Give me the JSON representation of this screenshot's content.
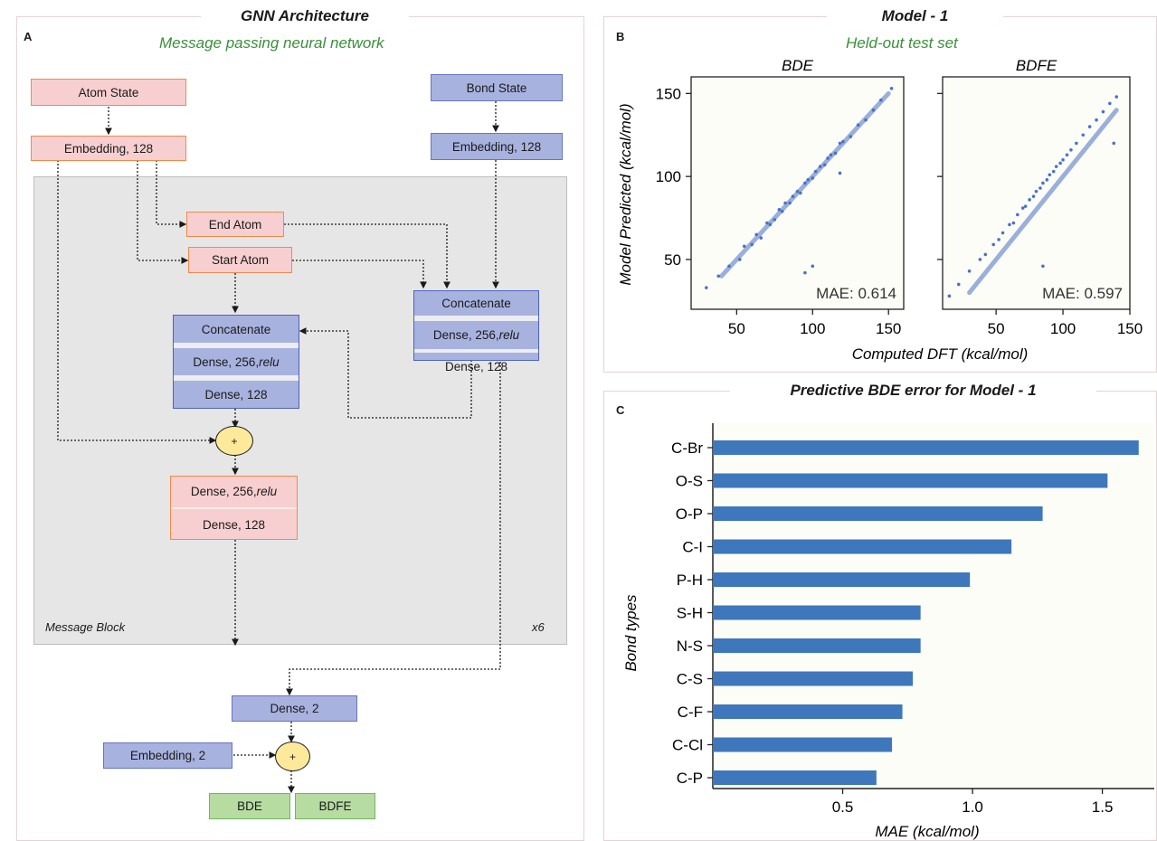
{
  "panel_a": {
    "letter": "A",
    "title": "GNN Architecture",
    "subtitle": "Message passing neural network",
    "atom_state": "Atom State",
    "atom_embedding": "Embedding, 128",
    "bond_state": "Bond State",
    "bond_embedding": "Embedding, 128",
    "end_atom": "End Atom",
    "start_atom": "Start Atom",
    "left_stack": {
      "concat": "Concatenate",
      "dense1_prefix": "Dense, 256, ",
      "dense1_act": "relu",
      "dense2": "Dense, 128"
    },
    "right_stack": {
      "concat": "Concatenate",
      "dense1_prefix": "Dense, 256, ",
      "dense1_act": "relu",
      "dense2": "Dense, 128"
    },
    "pink_stack": {
      "dense1_prefix": "Dense, 256, ",
      "dense1_act": "relu",
      "dense2": "Dense, 128"
    },
    "adder_symbol": "+",
    "message_block_label": "Message Block",
    "repeat_label": "x6",
    "dense_out": "Dense, 2",
    "embedding_out": "Embedding, 2",
    "output_bde": "BDE",
    "output_bdfe": "BDFE"
  },
  "panel_b": {
    "letter": "B",
    "title": "Model - 1",
    "subtitle": "Held-out test set",
    "ylabel": "Model Predicted  (kcal/mol)",
    "xlabel": "Computed DFT (kcal/mol)",
    "point_color": "#4a72c4"
  },
  "panel_c": {
    "letter": "C",
    "title": "Predictive BDE error for Model - 1",
    "bar_color": "#3e77bb"
  },
  "chart_data": [
    {
      "type": "scatter",
      "title": "BDE",
      "xlim": [
        20,
        160
      ],
      "ylim": [
        20,
        160
      ],
      "xticks": [
        50,
        100,
        150
      ],
      "yticks": [
        50,
        100,
        150
      ],
      "annotation": "MAE: 0.614",
      "x": [
        30,
        38,
        45,
        52,
        55,
        60,
        63,
        66,
        70,
        72,
        75,
        78,
        80,
        82,
        85,
        87,
        90,
        92,
        95,
        97,
        100,
        102,
        105,
        108,
        110,
        112,
        115,
        118,
        120,
        125,
        130,
        135,
        140,
        145,
        152,
        95,
        100,
        118
      ],
      "y": [
        33,
        40,
        46,
        50,
        58,
        59,
        65,
        63,
        72,
        71,
        74,
        80,
        79,
        84,
        84,
        88,
        91,
        90,
        96,
        98,
        99,
        103,
        106,
        107,
        111,
        113,
        114,
        120,
        121,
        124,
        131,
        134,
        140,
        146,
        153,
        42,
        46,
        102
      ]
    },
    {
      "type": "scatter",
      "title": "BDFE",
      "xlim": [
        10,
        150
      ],
      "ylim": [
        20,
        160
      ],
      "xticks": [
        50,
        100,
        150
      ],
      "yticks": [
        50,
        100,
        150
      ],
      "annotation": "MAE: 0.597",
      "x": [
        15,
        22,
        30,
        38,
        42,
        48,
        52,
        55,
        60,
        63,
        66,
        70,
        72,
        75,
        78,
        80,
        83,
        85,
        88,
        90,
        93,
        95,
        98,
        100,
        103,
        106,
        110,
        115,
        120,
        125,
        130,
        135,
        140,
        85,
        138
      ],
      "y": [
        28,
        35,
        43,
        50,
        53,
        59,
        62,
        66,
        71,
        72,
        77,
        81,
        82,
        86,
        88,
        91,
        93,
        96,
        98,
        101,
        103,
        106,
        108,
        110,
        113,
        116,
        120,
        125,
        130,
        134,
        139,
        144,
        148,
        46,
        120
      ]
    },
    {
      "type": "bar",
      "orientation": "horizontal",
      "categories": [
        "C-Br",
        "O-S",
        "O-P",
        "C-I",
        "P-H",
        "S-H",
        "N-S",
        "C-S",
        "C-F",
        "C-Cl",
        "C-P"
      ],
      "values": [
        1.64,
        1.52,
        1.27,
        1.15,
        0.99,
        0.8,
        0.8,
        0.77,
        0.73,
        0.69,
        0.63
      ],
      "xlim": [
        0,
        1.7
      ],
      "xticks": [
        "0.5",
        "1.0",
        "1.5"
      ],
      "xlabel": "MAE (kcal/mol)",
      "ylabel": "Bond types"
    }
  ]
}
